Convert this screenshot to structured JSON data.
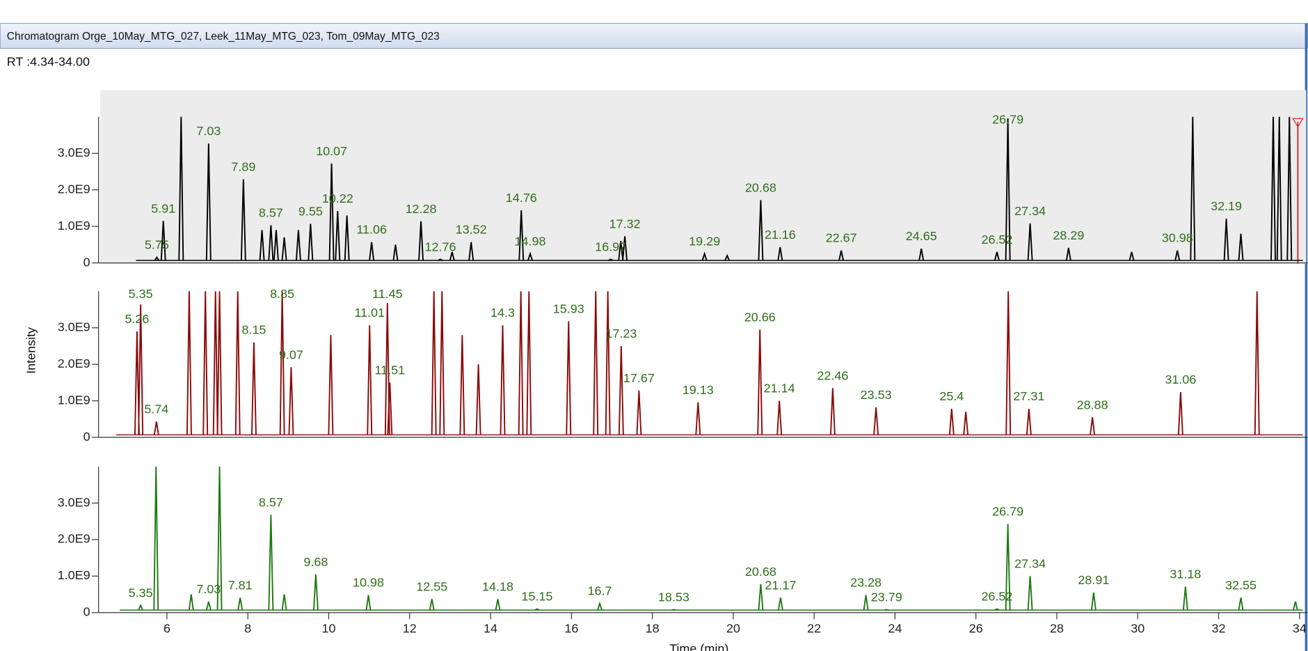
{
  "chart_data": {
    "type": "chromatogram",
    "title": "Chromatogram  Orge_10May_MTG_027, Leek_11May_MTG_023, Tom_09May_MTG_023",
    "subtitle": "RT :4.34-34.00",
    "ylabel": "Intensity",
    "xlabel": "Time (min)",
    "xlim": [
      4.34,
      34
    ],
    "xticks": [
      6,
      8,
      10,
      12,
      14,
      16,
      18,
      20,
      22,
      24,
      26,
      28,
      30,
      32,
      34
    ],
    "ylim": [
      0,
      4000000000
    ],
    "yticks": [
      0,
      {
        "value": 1000000000,
        "label": "1.0E9"
      },
      {
        "value": 2000000000,
        "label": "2.0E9"
      },
      {
        "value": 3000000000,
        "label": "3.0E9"
      }
    ],
    "series": [
      {
        "name": "Orge_10May_MTG_027",
        "color": "#000000",
        "x": [
          5.75,
          5.91,
          6.35,
          7.03,
          7.89,
          8.35,
          8.57,
          8.7,
          8.9,
          9.25,
          9.55,
          10.07,
          10.22,
          10.45,
          11.06,
          11.65,
          12.28,
          12.76,
          13.05,
          13.52,
          14.76,
          14.98,
          16.97,
          17.22,
          17.32,
          19.29,
          19.85,
          20.68,
          21.16,
          22.67,
          24.65,
          26.52,
          26.79,
          27.34,
          28.29,
          29.85,
          30.98,
          31.36,
          32.19,
          32.55,
          33.35,
          33.5,
          33.75
        ],
        "values": [
          150000000,
          1150000000,
          4000000000,
          3270000000,
          2290000000,
          900000000,
          1030000000,
          900000000,
          700000000,
          900000000,
          1070000000,
          2720000000,
          1420000000,
          1300000000,
          570000000,
          500000000,
          1140000000,
          100000000,
          300000000,
          570000000,
          1440000000,
          250000000,
          100000000,
          600000000,
          730000000,
          250000000,
          200000000,
          1720000000,
          430000000,
          340000000,
          390000000,
          300000000,
          3960000000,
          1080000000,
          410000000,
          300000000,
          340000000,
          4000000000,
          1210000000,
          800000000,
          4000000000,
          4000000000,
          4000000000
        ],
        "labels": [
          5.75,
          5.91,
          7.03,
          7.89,
          8.57,
          9.55,
          10.07,
          10.22,
          11.06,
          12.28,
          12.76,
          13.52,
          14.76,
          14.98,
          16.97,
          17.32,
          19.29,
          20.68,
          21.16,
          22.67,
          24.65,
          26.52,
          26.79,
          27.34,
          28.29,
          30.98,
          32.19
        ]
      },
      {
        "name": "Leek_11May_MTG_023",
        "color": "#8b0a0a",
        "x": [
          5.26,
          5.35,
          5.74,
          6.55,
          6.95,
          7.2,
          7.3,
          7.75,
          8.15,
          8.85,
          9.07,
          10.05,
          11.01,
          11.45,
          11.51,
          12.6,
          12.8,
          13.3,
          13.7,
          14.3,
          14.75,
          14.95,
          15.93,
          16.6,
          16.9,
          17.23,
          17.67,
          19.13,
          20.66,
          21.14,
          22.46,
          23.53,
          25.4,
          25.75,
          26.8,
          27.31,
          28.88,
          31.06,
          32.95
        ],
        "values": [
          2900000000,
          3640000000,
          430000000,
          4000000000,
          4000000000,
          4000000000,
          4000000000,
          4000000000,
          2600000000,
          4000000000,
          1920000000,
          2800000000,
          3070000000,
          3680000000,
          1500000000,
          4000000000,
          4000000000,
          2800000000,
          2000000000,
          3070000000,
          4000000000,
          4000000000,
          3180000000,
          4000000000,
          4000000000,
          2500000000,
          1280000000,
          960000000,
          2950000000,
          1000000000,
          1350000000,
          820000000,
          780000000,
          700000000,
          4000000000,
          780000000,
          550000000,
          1240000000,
          4000000000
        ],
        "labels": [
          5.26,
          5.35,
          5.74,
          8.15,
          8.85,
          9.07,
          11.01,
          11.45,
          11.51,
          14.3,
          15.93,
          17.23,
          17.67,
          19.13,
          20.66,
          21.14,
          22.46,
          23.53,
          25.4,
          27.31,
          28.88,
          31.06
        ]
      },
      {
        "name": "Tom_09May_MTG_023",
        "color": "#1e7a12",
        "x": [
          5.35,
          5.73,
          6.6,
          7.03,
          7.3,
          7.81,
          8.57,
          8.9,
          9.68,
          10.98,
          12.55,
          14.18,
          15.15,
          16.7,
          18.53,
          20.68,
          21.17,
          23.28,
          23.79,
          26.52,
          26.79,
          27.34,
          28.91,
          31.18,
          32.55,
          33.9
        ],
        "values": [
          200000000,
          4000000000,
          500000000,
          300000000,
          4000000000,
          410000000,
          2680000000,
          500000000,
          1050000000,
          480000000,
          370000000,
          370000000,
          100000000,
          250000000,
          80000000,
          780000000,
          410000000,
          480000000,
          80000000,
          100000000,
          2430000000,
          1000000000,
          550000000,
          710000000,
          410000000,
          300000000
        ],
        "labels": [
          5.35,
          7.03,
          7.81,
          8.57,
          9.68,
          10.98,
          12.55,
          14.18,
          15.15,
          16.7,
          18.53,
          20.68,
          21.17,
          23.28,
          23.79,
          26.52,
          26.79,
          27.34,
          28.91,
          31.18,
          32.55
        ]
      }
    ]
  }
}
